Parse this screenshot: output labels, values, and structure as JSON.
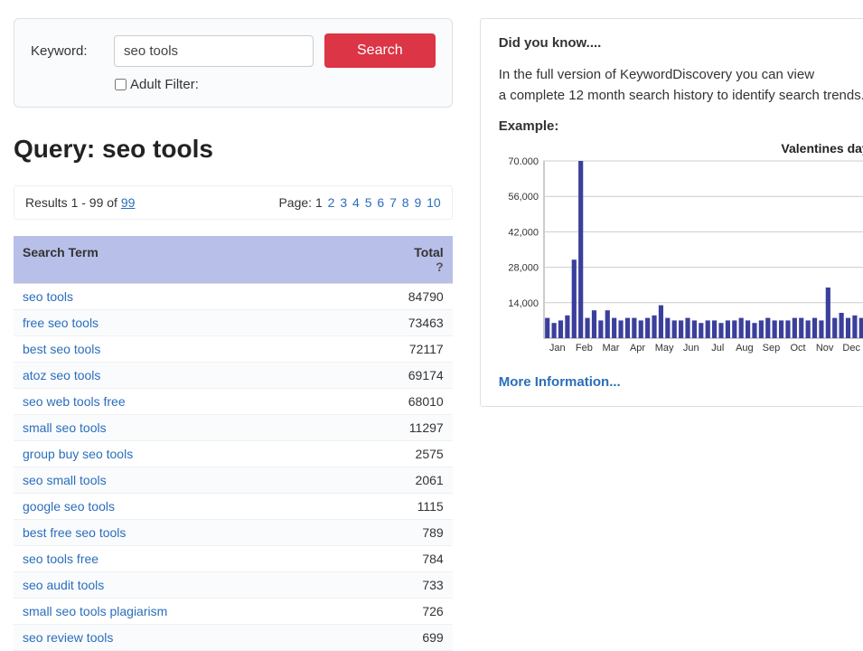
{
  "search": {
    "keyword_label": "Keyword:",
    "input_value": "seo tools",
    "button_label": "Search",
    "adult_filter_label": "Adult Filter:"
  },
  "query": {
    "title_prefix": "Query: ",
    "title_value": "seo tools"
  },
  "results_bar": {
    "results_text_prefix": "Results 1 - 99 of ",
    "results_total": "99",
    "page_label": "Page: ",
    "current_page": 1,
    "pages": [
      1,
      2,
      3,
      4,
      5,
      6,
      7,
      8,
      9,
      10
    ]
  },
  "table": {
    "col_term": "Search Term",
    "col_total": "Total",
    "help_symbol": "?",
    "rows": [
      {
        "term": "seo tools",
        "total": "84790"
      },
      {
        "term": "free seo tools",
        "total": "73463"
      },
      {
        "term": "best seo tools",
        "total": "72117"
      },
      {
        "term": "atoz seo tools",
        "total": "69174"
      },
      {
        "term": "seo web tools free",
        "total": "68010"
      },
      {
        "term": "small seo tools",
        "total": "11297"
      },
      {
        "term": "group buy seo tools",
        "total": "2575"
      },
      {
        "term": "seo small tools",
        "total": "2061"
      },
      {
        "term": "google seo tools",
        "total": "1115"
      },
      {
        "term": "best free seo tools",
        "total": "789"
      },
      {
        "term": "seo tools free",
        "total": "784"
      },
      {
        "term": "seo audit tools",
        "total": "733"
      },
      {
        "term": "small seo tools plagiarism",
        "total": "726"
      },
      {
        "term": "seo review tools",
        "total": "699"
      }
    ]
  },
  "info": {
    "dyk_title": "Did you know....",
    "dyk_line1": "In the full version of KeywordDiscovery you can view",
    "dyk_line2": "a complete 12 month search history to identify search trends.",
    "example_label": "Example:",
    "more_link": "More Information..."
  },
  "chart": {
    "type": "bar",
    "title": "Valentines day",
    "ylim": [
      0,
      70000
    ],
    "yticks": [
      14000,
      28000,
      42000,
      56000,
      70000
    ],
    "ytick_labels": [
      "14,000",
      "28,000",
      "42,000",
      "56,000",
      "70.000"
    ],
    "month_labels": [
      "Jan",
      "Feb",
      "Mar",
      "Apr",
      "May",
      "Jun",
      "Jul",
      "Aug",
      "Sep",
      "Oct",
      "Nov",
      "Dec"
    ],
    "bar_color": "#3b3f9c",
    "grid_color": "#cccccc",
    "border_color": "#999999",
    "background_color": "#ffffff",
    "label_color": "#333333",
    "label_fontsize": 11,
    "values": [
      8000,
      6000,
      7000,
      9000,
      31000,
      70000,
      8000,
      11000,
      7000,
      11000,
      8000,
      7000,
      8000,
      8000,
      7000,
      8000,
      9000,
      13000,
      8000,
      7000,
      7000,
      8000,
      7000,
      6000,
      7000,
      7000,
      6000,
      7000,
      7000,
      8000,
      7000,
      6000,
      7000,
      8000,
      7000,
      7000,
      7000,
      8000,
      8000,
      7000,
      8000,
      7000,
      20000,
      8000,
      10000,
      8000,
      9000,
      8000
    ]
  }
}
